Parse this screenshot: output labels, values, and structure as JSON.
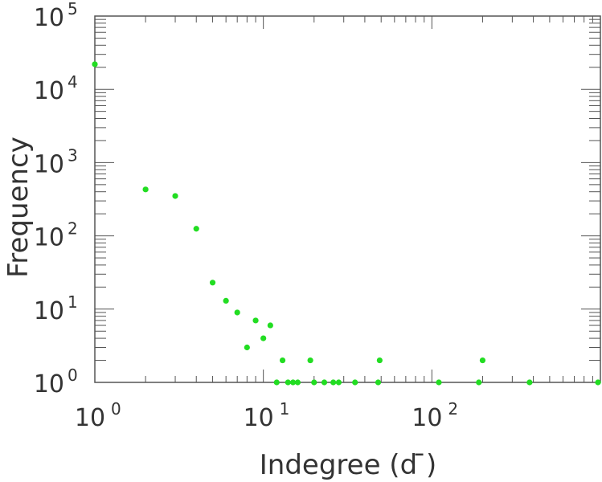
{
  "chart_data": {
    "type": "scatter",
    "title": "",
    "xlabel": "Indegree (d  ̄)",
    "ylabel": "Frequency",
    "x_scale": "log",
    "y_scale": "log",
    "xlim": [
      1,
      1000
    ],
    "ylim": [
      1,
      100000
    ],
    "grid": false,
    "marker_color": "#22dd22",
    "axis_color": "#555555",
    "x_ticks": [
      {
        "base": "10",
        "exp": "0",
        "value": 1
      },
      {
        "base": "10",
        "exp": "1",
        "value": 10
      },
      {
        "base": "10",
        "exp": "2",
        "value": 100
      }
    ],
    "y_ticks": [
      {
        "base": "10",
        "exp": "0",
        "value": 1
      },
      {
        "base": "10",
        "exp": "1",
        "value": 10
      },
      {
        "base": "10",
        "exp": "2",
        "value": 100
      },
      {
        "base": "10",
        "exp": "3",
        "value": 1000
      },
      {
        "base": "10",
        "exp": "4",
        "value": 10000
      },
      {
        "base": "10",
        "exp": "5",
        "value": 100000
      }
    ],
    "series": [
      {
        "points": [
          {
            "x": 1,
            "y": 22000
          },
          {
            "x": 2,
            "y": 430
          },
          {
            "x": 3,
            "y": 350
          },
          {
            "x": 4,
            "y": 125
          },
          {
            "x": 5,
            "y": 23
          },
          {
            "x": 6,
            "y": 13
          },
          {
            "x": 7,
            "y": 9
          },
          {
            "x": 8,
            "y": 3
          },
          {
            "x": 9,
            "y": 7
          },
          {
            "x": 10,
            "y": 4
          },
          {
            "x": 11,
            "y": 6
          },
          {
            "x": 12,
            "y": 1
          },
          {
            "x": 13,
            "y": 2
          },
          {
            "x": 14,
            "y": 1
          },
          {
            "x": 15,
            "y": 1
          },
          {
            "x": 16,
            "y": 1
          },
          {
            "x": 19,
            "y": 2
          },
          {
            "x": 20,
            "y": 1
          },
          {
            "x": 23,
            "y": 1
          },
          {
            "x": 26,
            "y": 1
          },
          {
            "x": 28,
            "y": 1
          },
          {
            "x": 35,
            "y": 1
          },
          {
            "x": 48,
            "y": 1
          },
          {
            "x": 49,
            "y": 2
          },
          {
            "x": 110,
            "y": 1
          },
          {
            "x": 190,
            "y": 1
          },
          {
            "x": 200,
            "y": 2
          },
          {
            "x": 380,
            "y": 1
          },
          {
            "x": 1000,
            "y": 1
          }
        ]
      }
    ]
  }
}
